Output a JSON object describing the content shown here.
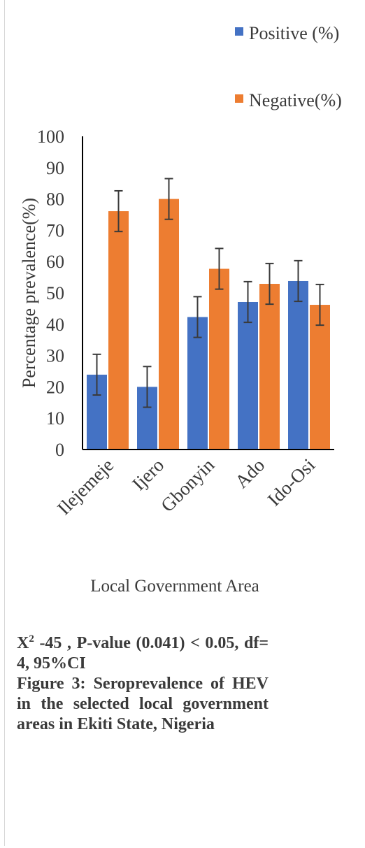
{
  "chart_data": {
    "type": "bar",
    "categories": [
      "Ilejemeje",
      "Ijero",
      "Gbonyin",
      "Ado",
      "Ido-Osi"
    ],
    "series": [
      {
        "name": "Positive (%)",
        "color": "#4472c4",
        "values": [
          23.9,
          20.0,
          42.3,
          47.1,
          53.8
        ],
        "error_low": [
          17.4,
          13.5,
          35.8,
          40.6,
          47.3
        ],
        "error_high": [
          30.4,
          26.5,
          48.8,
          53.6,
          60.3
        ]
      },
      {
        "name": "Negative(%)",
        "color": "#ed7d31",
        "values": [
          76.1,
          80.0,
          57.7,
          52.9,
          46.2
        ],
        "error_low": [
          69.6,
          73.5,
          51.2,
          46.4,
          39.7
        ],
        "error_high": [
          82.6,
          86.5,
          64.2,
          59.4,
          52.7
        ]
      }
    ],
    "ylabel": "Percentage prevalence(%)",
    "xlabel": "Local Government Area",
    "ylim": [
      0,
      100
    ],
    "yticks": [
      0,
      10,
      20,
      30,
      40,
      50,
      60,
      70,
      80,
      90,
      100
    ],
    "legend_position": "top-right",
    "grid": false
  },
  "legend": {
    "positive": "Positive (%)",
    "negative": "Negative(%)"
  },
  "caption": {
    "stat_prefix": "X",
    "stat_sup": "2",
    "stat_rest": " -45 , P-value (0.041) < 0.05, df= 4, 95%CI",
    "figure": "Figure 3: Seroprevalence of HEV in the selected local government areas in Ekiti State, Nigeria"
  },
  "colors": {
    "positive": "#4472c4",
    "negative": "#ed7d31",
    "axis": "#000000",
    "text": "#3a3a3a"
  }
}
